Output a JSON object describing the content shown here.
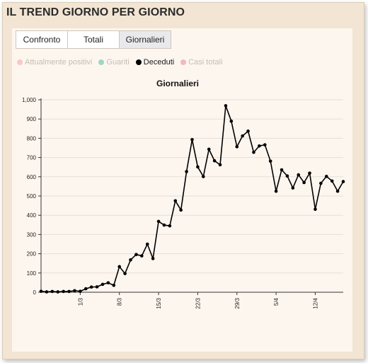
{
  "header": {
    "title": "IL TREND GIORNO PER GIORNO"
  },
  "tabs": [
    {
      "label": "Confronto",
      "active": false
    },
    {
      "label": "Totali",
      "active": false
    },
    {
      "label": "Giornalieri",
      "active": true
    }
  ],
  "legend": [
    {
      "label": "Attualmente positivi",
      "color": "#f6c8c8",
      "active": false
    },
    {
      "label": "Guariti",
      "color": "#9ed6c6",
      "active": false
    },
    {
      "label": "Deceduti",
      "color": "#000000",
      "active": true
    },
    {
      "label": "Casi totali",
      "color": "#f2b8c0",
      "active": false
    }
  ],
  "chart_data": {
    "type": "line",
    "title": "Giornalieri",
    "xlabel": "",
    "ylabel": "",
    "ylim": [
      0,
      1000
    ],
    "yticks": [
      0,
      100,
      200,
      300,
      400,
      500,
      600,
      700,
      800,
      900,
      1000
    ],
    "ytick_labels": [
      "0",
      "100",
      "200",
      "300",
      "400",
      "500",
      "600",
      "700",
      "800",
      "900",
      "1,000"
    ],
    "xticks": [
      "1/3",
      "8/3",
      "15/3",
      "22/3",
      "29/3",
      "5/4",
      "12/4"
    ],
    "grid": true,
    "line_color": "#000000",
    "series": [
      {
        "name": "Deceduti",
        "x": [
          "23/2",
          "24/2",
          "25/2",
          "26/2",
          "27/2",
          "28/2",
          "29/2",
          "1/3",
          "2/3",
          "3/3",
          "4/3",
          "5/3",
          "6/3",
          "7/3",
          "8/3",
          "9/3",
          "10/3",
          "11/3",
          "12/3",
          "13/3",
          "14/3",
          "15/3",
          "16/3",
          "17/3",
          "18/3",
          "19/3",
          "20/3",
          "21/3",
          "22/3",
          "23/3",
          "24/3",
          "25/3",
          "26/3",
          "27/3",
          "28/3",
          "29/3",
          "30/3",
          "31/3",
          "1/4",
          "2/4",
          "3/4",
          "4/4",
          "5/4",
          "6/4",
          "7/4",
          "8/4",
          "9/4",
          "10/4",
          "11/4",
          "12/4",
          "13/4",
          "14/4",
          "15/4",
          "16/4",
          "17/4"
        ],
        "values": [
          5,
          2,
          4,
          2,
          4,
          4,
          8,
          5,
          18,
          27,
          28,
          41,
          49,
          36,
          133,
          97,
          168,
          196,
          189,
          250,
          175,
          368,
          349,
          345,
          475,
          427,
          627,
          793,
          651,
          601,
          743,
          683,
          662,
          969,
          889,
          756,
          812,
          837,
          727,
          760,
          766,
          681,
          525,
          636,
          604,
          542,
          610,
          570,
          619,
          431,
          566,
          602,
          578,
          525,
          575
        ]
      }
    ]
  }
}
